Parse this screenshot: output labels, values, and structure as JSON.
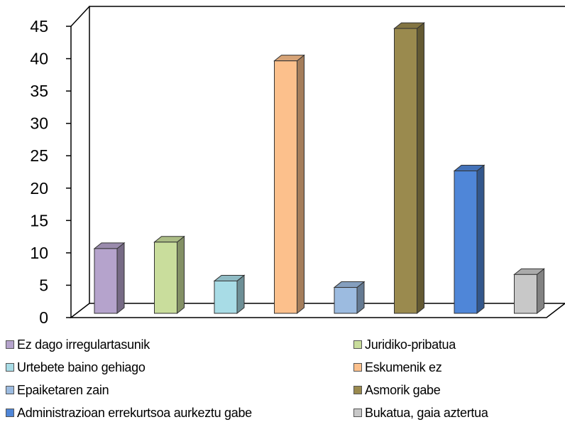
{
  "chart_data": {
    "type": "bar",
    "title": "",
    "xlabel": "",
    "ylabel": "",
    "ylim": [
      0,
      45
    ],
    "yticks": [
      0,
      5,
      10,
      15,
      20,
      25,
      30,
      35,
      40,
      45
    ],
    "grid": false,
    "three_d": true,
    "legend_position": "bottom",
    "categories": [
      "Ez dago irregulartasunik",
      "Juridiko-pribatua",
      "Urtebete baino gehiago",
      "Eskumenik ez",
      "Epaiketaren zain",
      "Asmorik gabe",
      "Administrazioan errekurtsoa aurkeztu gabe",
      "Bukatua, gaia aztertua"
    ],
    "values": [
      10,
      11,
      5,
      39,
      4,
      44,
      22,
      6
    ],
    "colors": [
      "#b5a3cc",
      "#c9dd9c",
      "#a8dce6",
      "#fcc08c",
      "#9cbbe0",
      "#9a8a4e",
      "#4f86d8",
      "#c8c8c8"
    ]
  }
}
